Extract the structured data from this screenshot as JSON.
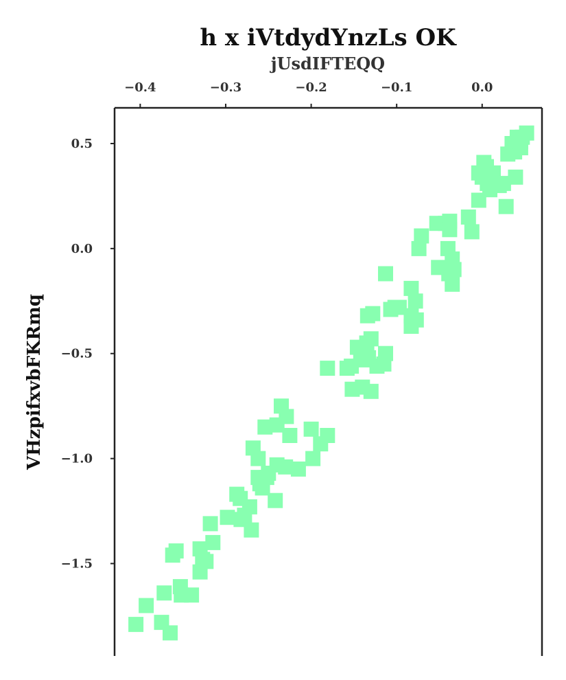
{
  "chart_data": {
    "type": "scatter",
    "title": "h x iVtdydYnzLs  OK",
    "xlabel": "jUsdIFTEQQ",
    "ylabel": "VHzpifxvbFKRmq",
    "xlim": [
      -0.43,
      0.07
    ],
    "ylim": [
      -1.94,
      0.67
    ],
    "x_axis_position": "top",
    "xticks": [
      -0.4,
      -0.3,
      -0.2,
      -0.1,
      0.0
    ],
    "xtick_labels": [
      "−0.4",
      "−0.3",
      "−0.2",
      "−0.1",
      "0.0"
    ],
    "yticks": [
      0.5,
      0.0,
      -0.5,
      -1.0,
      -1.5
    ],
    "ytick_labels": [
      "0.5",
      "0.0",
      "−0.5",
      "−1.0",
      "−1.5"
    ],
    "grid": false,
    "marker": "square",
    "color": "#88ffb0",
    "series": [
      {
        "points": [
          [
            -0.405,
            -1.79
          ],
          [
            -0.393,
            -1.7
          ],
          [
            -0.375,
            -1.78
          ],
          [
            -0.372,
            -1.64
          ],
          [
            -0.365,
            -1.83
          ],
          [
            -0.362,
            -1.46
          ],
          [
            -0.358,
            -1.44
          ],
          [
            -0.353,
            -1.61
          ],
          [
            -0.352,
            -1.65
          ],
          [
            -0.34,
            -1.65
          ],
          [
            -0.33,
            -1.43
          ],
          [
            -0.33,
            -1.54
          ],
          [
            -0.327,
            -1.48
          ],
          [
            -0.323,
            -1.49
          ],
          [
            -0.315,
            -1.4
          ],
          [
            -0.318,
            -1.31
          ],
          [
            -0.298,
            -1.28
          ],
          [
            -0.287,
            -1.17
          ],
          [
            -0.283,
            -1.19
          ],
          [
            -0.282,
            -1.29
          ],
          [
            -0.278,
            -1.27
          ],
          [
            -0.272,
            -1.23
          ],
          [
            -0.27,
            -1.34
          ],
          [
            -0.268,
            -0.95
          ],
          [
            -0.262,
            -1.0
          ],
          [
            -0.26,
            -1.12
          ],
          [
            -0.262,
            -1.09
          ],
          [
            -0.257,
            -1.14
          ],
          [
            -0.252,
            -1.09
          ],
          [
            -0.25,
            -1.07
          ],
          [
            -0.254,
            -0.85
          ],
          [
            -0.242,
            -1.2
          ],
          [
            -0.24,
            -0.84
          ],
          [
            -0.24,
            -1.03
          ],
          [
            -0.235,
            -0.75
          ],
          [
            -0.23,
            -1.04
          ],
          [
            -0.229,
            -0.8
          ],
          [
            -0.225,
            -0.89
          ],
          [
            -0.215,
            -1.05
          ],
          [
            -0.2,
            -0.86
          ],
          [
            -0.198,
            -1.0
          ],
          [
            -0.189,
            -0.93
          ],
          [
            -0.181,
            -0.89
          ],
          [
            -0.181,
            -0.57
          ],
          [
            -0.158,
            -0.57
          ],
          [
            -0.152,
            -0.67
          ],
          [
            -0.153,
            -0.56
          ],
          [
            -0.146,
            -0.47
          ],
          [
            -0.142,
            -0.5
          ],
          [
            -0.14,
            -0.66
          ],
          [
            -0.137,
            -0.53
          ],
          [
            -0.135,
            -0.45
          ],
          [
            -0.133,
            -0.52
          ],
          [
            -0.134,
            -0.32
          ],
          [
            -0.13,
            -0.68
          ],
          [
            -0.128,
            -0.31
          ],
          [
            -0.13,
            -0.43
          ],
          [
            -0.123,
            -0.56
          ],
          [
            -0.115,
            -0.55
          ],
          [
            -0.113,
            -0.5
          ],
          [
            -0.113,
            -0.12
          ],
          [
            -0.107,
            -0.29
          ],
          [
            -0.102,
            -0.28
          ],
          [
            -0.097,
            -0.28
          ],
          [
            -0.083,
            -0.19
          ],
          [
            -0.083,
            -0.37
          ],
          [
            -0.083,
            -0.32
          ],
          [
            -0.078,
            -0.25
          ],
          [
            -0.077,
            -0.34
          ],
          [
            -0.074,
            -0.0
          ],
          [
            -0.071,
            0.06
          ],
          [
            -0.053,
            0.12
          ],
          [
            -0.051,
            -0.09
          ],
          [
            -0.043,
            0.12
          ],
          [
            -0.04,
            0.0
          ],
          [
            -0.039,
            -0.12
          ],
          [
            -0.038,
            0.13
          ],
          [
            -0.038,
            0.09
          ],
          [
            -0.035,
            -0.17
          ],
          [
            -0.035,
            -0.05
          ],
          [
            -0.033,
            -0.1
          ],
          [
            -0.016,
            0.15
          ],
          [
            -0.012,
            0.08
          ],
          [
            -0.004,
            0.23
          ],
          [
            -0.004,
            0.36
          ],
          [
            0.0,
            0.34
          ],
          [
            0.002,
            0.41
          ],
          [
            0.005,
            0.39
          ],
          [
            0.006,
            0.31
          ],
          [
            0.009,
            0.28
          ],
          [
            0.013,
            0.36
          ],
          [
            0.02,
            0.3
          ],
          [
            0.025,
            0.31
          ],
          [
            0.028,
            0.2
          ],
          [
            0.03,
            0.45
          ],
          [
            0.035,
            0.5
          ],
          [
            0.038,
            0.46
          ],
          [
            0.039,
            0.34
          ],
          [
            0.041,
            0.53
          ],
          [
            0.045,
            0.48
          ],
          [
            0.045,
            0.51
          ],
          [
            0.047,
            0.53
          ],
          [
            0.052,
            0.55
          ]
        ]
      }
    ]
  }
}
